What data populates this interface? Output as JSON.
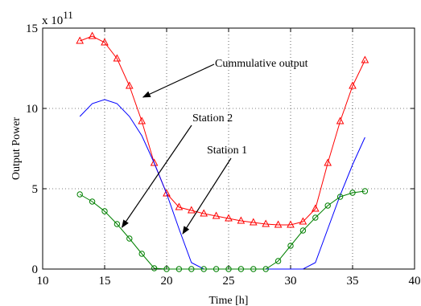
{
  "chart_data": {
    "type": "line",
    "xlabel": "Time [h]",
    "ylabel": "Output Power",
    "y_multiplier": "x 10",
    "y_exponent": "11",
    "xlim": [
      10,
      40
    ],
    "ylim": [
      0,
      15
    ],
    "xticks": [
      10,
      15,
      20,
      25,
      30,
      35,
      40
    ],
    "yticks": [
      0,
      5,
      10,
      15
    ],
    "grid": true,
    "grid_style": "dotted",
    "x": [
      13,
      14,
      15,
      16,
      17,
      18,
      19,
      20,
      21,
      22,
      23,
      24,
      25,
      26,
      27,
      28,
      29,
      30,
      31,
      32,
      33,
      34,
      35,
      36
    ],
    "series": [
      {
        "color": "#ff0000",
        "marker": "triangle",
        "values": [
          14.2,
          14.5,
          14.1,
          13.1,
          11.4,
          9.2,
          6.6,
          4.7,
          3.85,
          3.65,
          3.45,
          3.3,
          3.15,
          3.0,
          2.9,
          2.8,
          2.75,
          2.75,
          2.95,
          3.75,
          6.6,
          9.2,
          11.4,
          13.0
        ]
      },
      {
        "color": "#0000ff",
        "marker": "none",
        "values": [
          9.5,
          10.3,
          10.55,
          10.3,
          9.5,
          8.3,
          6.6,
          4.7,
          2.5,
          0.4,
          0.0,
          0.0,
          0.0,
          0.0,
          0.0,
          0.0,
          0.0,
          0.0,
          0.0,
          0.4,
          2.5,
          4.6,
          6.5,
          8.2
        ]
      },
      {
        "color": "#008000",
        "marker": "circle",
        "values": [
          4.65,
          4.2,
          3.6,
          2.8,
          1.9,
          0.95,
          0.05,
          0.0,
          0.0,
          0.0,
          0.0,
          0.0,
          0.0,
          0.0,
          0.0,
          0.0,
          0.5,
          1.45,
          2.4,
          3.2,
          3.95,
          4.5,
          4.75,
          4.85
        ]
      }
    ],
    "annotations": [
      {
        "text": "Cummulative output",
        "arrow_to": [
          18.1,
          10.7
        ]
      },
      {
        "text": "Station 2",
        "arrow_to": [
          16.4,
          2.6
        ]
      },
      {
        "text": "Station 1",
        "arrow_to": [
          21.3,
          2.2
        ]
      }
    ]
  }
}
